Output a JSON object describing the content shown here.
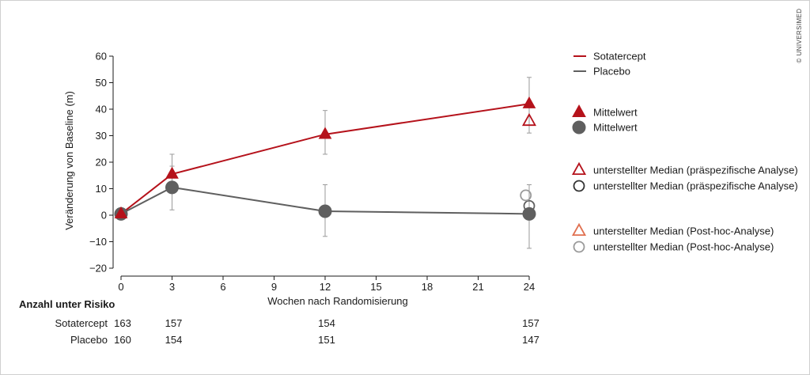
{
  "copyright": "© UNIVERSIMED",
  "chart_data": {
    "type": "line",
    "xlabel": "Wochen nach Randomisierung",
    "ylabel": "Veränderung von Baseline (m)",
    "xlim": [
      0,
      24
    ],
    "ylim": [
      -20,
      60
    ],
    "xticks": [
      0,
      3,
      6,
      9,
      12,
      15,
      18,
      21,
      24
    ],
    "yticks": [
      60,
      50,
      40,
      30,
      20,
      10,
      0,
      -10,
      -20
    ],
    "ytick_labels": [
      "60",
      "50",
      "40",
      "30",
      "20",
      "10",
      "0",
      "−10",
      "−20"
    ],
    "grid": false,
    "legend_position": "right",
    "series": [
      {
        "name": "Sotatercept",
        "color": "#b5121b",
        "marker": "triangle",
        "x": [
          0,
          3,
          12,
          24
        ],
        "y": [
          0.5,
          15.5,
          30.5,
          42
        ],
        "err_low": [
          0,
          11,
          23,
          31
        ],
        "err_high": [
          0,
          23,
          39.5,
          52
        ]
      },
      {
        "name": "Placebo",
        "color": "#5f5f5f",
        "marker": "circle",
        "x": [
          0,
          3,
          12,
          24
        ],
        "y": [
          0.5,
          10.5,
          1.5,
          0.5
        ],
        "err_low": [
          0,
          2,
          -8,
          -12.5
        ],
        "err_high": [
          0,
          18.5,
          11.5,
          11.5
        ]
      }
    ],
    "median_markers": [
      {
        "group": "Sotatercept",
        "analysis": "präspezifisch",
        "shape": "triangle",
        "color": "#b5121b",
        "x": 24,
        "y": 35.5
      },
      {
        "group": "Placebo",
        "analysis": "präspezifisch",
        "shape": "circle",
        "color": "#5f5f5f",
        "x": 24,
        "y": 3.5
      },
      {
        "group": "Placebo",
        "analysis": "post-hoc",
        "shape": "circle",
        "color": "#9a9a9a",
        "x": 23.8,
        "y": 7.5
      }
    ],
    "legend": {
      "lines": [
        {
          "label": "Sotatercept",
          "color": "#b5121b"
        },
        {
          "label": "Placebo",
          "color": "#5f5f5f"
        }
      ],
      "markers": [
        {
          "label": "Mittelwert",
          "shape": "triangle",
          "filled": true,
          "color": "#b5121b"
        },
        {
          "label": "Mittelwert",
          "shape": "circle",
          "filled": true,
          "color": "#5f5f5f"
        },
        {
          "label": "unterstellter Median (präspezifische Analyse)",
          "shape": "triangle",
          "filled": false,
          "color": "#b5121b"
        },
        {
          "label": "unterstellter Median (präspezifische Analyse)",
          "shape": "circle",
          "filled": false,
          "color": "#333333"
        },
        {
          "label": "unterstellter Median (Post-hoc-Analyse)",
          "shape": "triangle",
          "filled": false,
          "color": "#e07050"
        },
        {
          "label": "unterstellter Median (Post-hoc-Analyse)",
          "shape": "circle",
          "filled": false,
          "color": "#9a9a9a"
        }
      ]
    },
    "risk_table": {
      "title": "Anzahl unter Risiko",
      "x": [
        0,
        3,
        12,
        24
      ],
      "rows": [
        {
          "label": "Sotatercept",
          "values": [
            "163",
            "157",
            "154",
            "157"
          ]
        },
        {
          "label": "Placebo",
          "values": [
            "160",
            "154",
            "151",
            "147"
          ]
        }
      ]
    }
  }
}
